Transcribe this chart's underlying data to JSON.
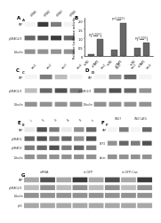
{
  "background": "#ffffff",
  "panel_labels": [
    "A",
    "B",
    "C",
    "D",
    "E",
    "F",
    "G"
  ],
  "bar_data": {
    "groups": [
      {
        "label": "si-NC",
        "value": 0.12
      },
      {
        "label": "si-YAP1",
        "value": 0.95
      },
      {
        "label": "si-NC",
        "value": 0.35
      },
      {
        "label": "si-YAP1",
        "value": 1.85
      },
      {
        "label": "si-NC",
        "value": 0.45
      },
      {
        "label": "si-YAP1",
        "value": 0.75
      }
    ],
    "color": "#555555",
    "ylim": [
      0,
      2.2
    ],
    "yticks": [
      0,
      0.5,
      1.0,
      1.5,
      2.0
    ],
    "ylabel": "Relative luciferase activity"
  },
  "blot_color_dark": "#222222",
  "blot_color_mid": "#666666",
  "blot_color_light": "#aaaaaa",
  "blot_bg": "#e8e8e8",
  "lane_colors": {
    "strong": "#111111",
    "medium": "#444444",
    "weak": "#888888",
    "none": "#cccccc"
  }
}
